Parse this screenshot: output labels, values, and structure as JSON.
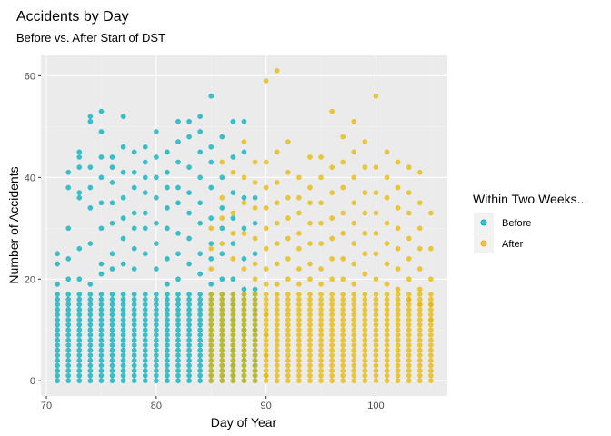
{
  "colors": {
    "before": "#00AFBB",
    "after": "#E7B800",
    "panel": "#EBEBEB",
    "grid_major": "#FFFFFF",
    "grid_minor": "#F3F3F3"
  },
  "chart_data": {
    "type": "scatter",
    "title": "Accidents by Day",
    "subtitle": "Before vs. After Start of DST",
    "xlabel": "Day of Year",
    "ylabel": "Number of Accidents",
    "xlim": [
      69.5,
      106.5
    ],
    "ylim": [
      -3,
      64
    ],
    "x_ticks": [
      70,
      80,
      90,
      100
    ],
    "y_ticks": [
      0,
      20,
      40,
      60
    ],
    "grid": true,
    "legend": {
      "title": "Within Two Weeks...",
      "position": "right",
      "entries": [
        "Before",
        "After"
      ]
    },
    "series": [
      {
        "name": "Before",
        "x_range": [
          71,
          89
        ],
        "dense_max": 17,
        "points": [
          [
            71,
            25
          ],
          [
            71,
            23
          ],
          [
            71,
            19
          ],
          [
            72,
            30
          ],
          [
            72,
            41
          ],
          [
            72,
            38
          ],
          [
            72,
            24
          ],
          [
            72,
            20
          ],
          [
            73,
            45
          ],
          [
            73,
            44
          ],
          [
            73,
            42
          ],
          [
            73,
            37
          ],
          [
            73,
            36
          ],
          [
            73,
            26
          ],
          [
            73,
            20
          ],
          [
            74,
            52
          ],
          [
            74,
            51
          ],
          [
            74,
            42
          ],
          [
            74,
            38
          ],
          [
            74,
            34
          ],
          [
            74,
            27
          ],
          [
            74,
            19
          ],
          [
            75,
            53
          ],
          [
            75,
            49
          ],
          [
            75,
            44
          ],
          [
            75,
            40
          ],
          [
            75,
            35
          ],
          [
            75,
            30
          ],
          [
            75,
            23
          ],
          [
            75,
            21
          ],
          [
            76,
            44
          ],
          [
            76,
            42
          ],
          [
            76,
            39
          ],
          [
            76,
            35
          ],
          [
            76,
            31
          ],
          [
            76,
            25
          ],
          [
            76,
            22
          ],
          [
            77,
            52
          ],
          [
            77,
            46
          ],
          [
            77,
            41
          ],
          [
            77,
            36
          ],
          [
            77,
            32
          ],
          [
            77,
            28
          ],
          [
            77,
            23
          ],
          [
            78,
            45
          ],
          [
            78,
            41
          ],
          [
            78,
            38
          ],
          [
            78,
            33
          ],
          [
            78,
            30
          ],
          [
            78,
            26
          ],
          [
            78,
            22
          ],
          [
            79,
            46
          ],
          [
            79,
            43
          ],
          [
            79,
            40
          ],
          [
            79,
            37
          ],
          [
            79,
            33
          ],
          [
            79,
            30
          ],
          [
            79,
            25
          ],
          [
            80,
            49
          ],
          [
            80,
            44
          ],
          [
            80,
            40
          ],
          [
            80,
            36
          ],
          [
            80,
            31
          ],
          [
            80,
            27
          ],
          [
            80,
            22
          ],
          [
            81,
            45
          ],
          [
            81,
            41
          ],
          [
            81,
            38
          ],
          [
            81,
            34
          ],
          [
            81,
            30
          ],
          [
            81,
            24
          ],
          [
            81,
            19
          ],
          [
            82,
            51
          ],
          [
            82,
            47
          ],
          [
            82,
            43
          ],
          [
            82,
            38
          ],
          [
            82,
            35
          ],
          [
            82,
            29
          ],
          [
            82,
            25
          ],
          [
            82,
            20
          ],
          [
            83,
            51
          ],
          [
            83,
            48
          ],
          [
            83,
            42
          ],
          [
            83,
            37
          ],
          [
            83,
            33
          ],
          [
            83,
            28
          ],
          [
            83,
            23
          ],
          [
            84,
            52
          ],
          [
            84,
            49
          ],
          [
            84,
            45
          ],
          [
            84,
            40
          ],
          [
            84,
            35
          ],
          [
            84,
            31
          ],
          [
            84,
            25
          ],
          [
            84,
            21
          ],
          [
            85,
            56
          ],
          [
            85,
            46
          ],
          [
            85,
            43
          ],
          [
            85,
            38
          ],
          [
            85,
            32
          ],
          [
            85,
            27
          ],
          [
            85,
            24
          ],
          [
            85,
            19
          ],
          [
            86,
            48
          ],
          [
            86,
            40
          ],
          [
            86,
            34
          ],
          [
            86,
            30
          ],
          [
            86,
            25
          ],
          [
            86,
            20
          ],
          [
            87,
            51
          ],
          [
            87,
            44
          ],
          [
            87,
            37
          ],
          [
            87,
            32
          ],
          [
            87,
            27
          ],
          [
            87,
            20
          ],
          [
            87,
            15
          ],
          [
            87,
            12
          ],
          [
            87,
            6
          ],
          [
            87,
            3
          ],
          [
            87,
            1
          ],
          [
            88,
            51
          ],
          [
            88,
            45
          ],
          [
            88,
            36
          ],
          [
            88,
            30
          ],
          [
            88,
            24
          ],
          [
            88,
            18
          ],
          [
            88,
            10
          ],
          [
            88,
            4
          ],
          [
            89,
            36
          ],
          [
            89,
            31
          ],
          [
            89,
            25
          ],
          [
            89,
            18
          ],
          [
            89,
            10
          ],
          [
            89,
            3
          ]
        ]
      },
      {
        "name": "After",
        "x_range": [
          85,
          105
        ],
        "dense_max": 17,
        "points": [
          [
            85,
            30
          ],
          [
            85,
            26
          ],
          [
            85,
            22
          ],
          [
            86,
            43
          ],
          [
            86,
            36
          ],
          [
            86,
            32
          ],
          [
            86,
            27
          ],
          [
            87,
            41
          ],
          [
            87,
            33
          ],
          [
            87,
            29
          ],
          [
            87,
            24
          ],
          [
            88,
            47
          ],
          [
            88,
            40
          ],
          [
            88,
            35
          ],
          [
            88,
            29
          ],
          [
            88,
            22
          ],
          [
            89,
            43
          ],
          [
            89,
            39
          ],
          [
            89,
            34
          ],
          [
            89,
            28
          ],
          [
            89,
            23
          ],
          [
            89,
            20
          ],
          [
            90,
            59
          ],
          [
            90,
            43
          ],
          [
            90,
            38
          ],
          [
            90,
            34
          ],
          [
            90,
            30
          ],
          [
            90,
            26
          ],
          [
            90,
            22
          ],
          [
            90,
            19
          ],
          [
            90,
            13
          ],
          [
            90,
            9
          ],
          [
            90,
            5
          ],
          [
            90,
            1
          ],
          [
            91,
            61
          ],
          [
            91,
            45
          ],
          [
            91,
            39
          ],
          [
            91,
            35
          ],
          [
            91,
            31
          ],
          [
            91,
            27
          ],
          [
            91,
            23
          ],
          [
            91,
            19
          ],
          [
            92,
            47
          ],
          [
            92,
            41
          ],
          [
            92,
            36
          ],
          [
            92,
            32
          ],
          [
            92,
            28
          ],
          [
            92,
            24
          ],
          [
            92,
            20
          ],
          [
            93,
            40
          ],
          [
            93,
            36
          ],
          [
            93,
            33
          ],
          [
            93,
            29
          ],
          [
            93,
            26
          ],
          [
            93,
            22
          ],
          [
            93,
            19
          ],
          [
            94,
            44
          ],
          [
            94,
            38
          ],
          [
            94,
            35
          ],
          [
            94,
            31
          ],
          [
            94,
            27
          ],
          [
            94,
            23
          ],
          [
            94,
            20
          ],
          [
            95,
            44
          ],
          [
            95,
            40
          ],
          [
            95,
            35
          ],
          [
            95,
            31
          ],
          [
            95,
            27
          ],
          [
            95,
            22
          ],
          [
            95,
            19
          ],
          [
            96,
            53
          ],
          [
            96,
            42
          ],
          [
            96,
            37
          ],
          [
            96,
            32
          ],
          [
            96,
            28
          ],
          [
            96,
            24
          ],
          [
            96,
            20
          ],
          [
            97,
            48
          ],
          [
            97,
            43
          ],
          [
            97,
            38
          ],
          [
            97,
            33
          ],
          [
            97,
            29
          ],
          [
            97,
            24
          ],
          [
            97,
            20
          ],
          [
            98,
            51
          ],
          [
            98,
            45
          ],
          [
            98,
            40
          ],
          [
            98,
            35
          ],
          [
            98,
            31
          ],
          [
            98,
            27
          ],
          [
            98,
            23
          ],
          [
            98,
            19
          ],
          [
            99,
            47
          ],
          [
            99,
            42
          ],
          [
            99,
            37
          ],
          [
            99,
            33
          ],
          [
            99,
            29
          ],
          [
            99,
            25
          ],
          [
            99,
            21
          ],
          [
            100,
            56
          ],
          [
            100,
            42
          ],
          [
            100,
            37
          ],
          [
            100,
            33
          ],
          [
            100,
            29
          ],
          [
            100,
            25
          ],
          [
            100,
            20
          ],
          [
            101,
            45
          ],
          [
            101,
            40
          ],
          [
            101,
            36
          ],
          [
            101,
            31
          ],
          [
            101,
            27
          ],
          [
            101,
            23
          ],
          [
            101,
            19
          ],
          [
            102,
            43
          ],
          [
            102,
            38
          ],
          [
            102,
            34
          ],
          [
            102,
            30
          ],
          [
            102,
            26
          ],
          [
            102,
            22
          ],
          [
            102,
            18
          ],
          [
            103,
            42
          ],
          [
            103,
            37
          ],
          [
            103,
            33
          ],
          [
            103,
            28
          ],
          [
            103,
            24
          ],
          [
            103,
            20
          ],
          [
            103,
            16
          ],
          [
            104,
            41
          ],
          [
            104,
            35
          ],
          [
            104,
            30
          ],
          [
            104,
            26
          ],
          [
            104,
            22
          ],
          [
            104,
            18
          ],
          [
            104,
            15
          ],
          [
            105,
            33
          ],
          [
            105,
            26
          ],
          [
            105,
            20
          ],
          [
            105,
            15
          ],
          [
            105,
            12
          ]
        ]
      }
    ]
  }
}
